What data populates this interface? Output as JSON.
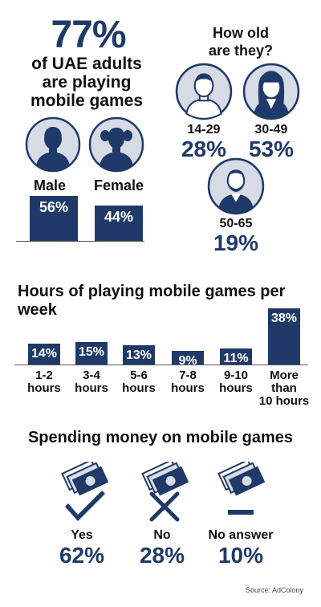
{
  "headline": {
    "percent": "77%",
    "line1": "of UAE adults",
    "line2": "are playing",
    "line3": "mobile games"
  },
  "age_question": {
    "line1": "How old",
    "line2": "are they?"
  },
  "colors": {
    "navy": "#1f3a68",
    "avatar_fill": "#d6dbe6",
    "axis": "#555555"
  },
  "chart_data": [
    {
      "type": "bar",
      "title": "",
      "categories": [
        "Male",
        "Female"
      ],
      "values": [
        56,
        44
      ],
      "labels": [
        "56%",
        "44%"
      ],
      "unit": "%"
    },
    {
      "type": "table",
      "title": "",
      "categories": [
        "14-29",
        "30-49",
        "50-65"
      ],
      "values": [
        28,
        53,
        19
      ],
      "labels": [
        "28%",
        "53%",
        "19%"
      ],
      "unit": "%"
    },
    {
      "type": "bar",
      "title": "Hours of playing mobile games per week",
      "categories": [
        "1-2 hours",
        "3-4 hours",
        "5-6 hours",
        "7-8 hours",
        "9-10 hours",
        "More than 10 hours"
      ],
      "values": [
        14,
        15,
        13,
        9,
        11,
        38
      ],
      "labels": [
        "14%",
        "15%",
        "13%",
        "9%",
        "11%",
        "38%"
      ],
      "unit": "%"
    },
    {
      "type": "table",
      "title": "Spending money on mobile games",
      "categories": [
        "Yes",
        "No",
        "No answer"
      ],
      "values": [
        62,
        28,
        10
      ],
      "labels": [
        "62%",
        "28%",
        "10%"
      ],
      "unit": "%"
    }
  ],
  "hour_labels": [
    [
      "1-2",
      "hours"
    ],
    [
      "3-4",
      "hours"
    ],
    [
      "5-6",
      "hours"
    ],
    [
      "7-8",
      "hours"
    ],
    [
      "9-10",
      "hours"
    ],
    [
      "More",
      "than",
      "10 hours"
    ]
  ],
  "source": "Source: AdColony"
}
